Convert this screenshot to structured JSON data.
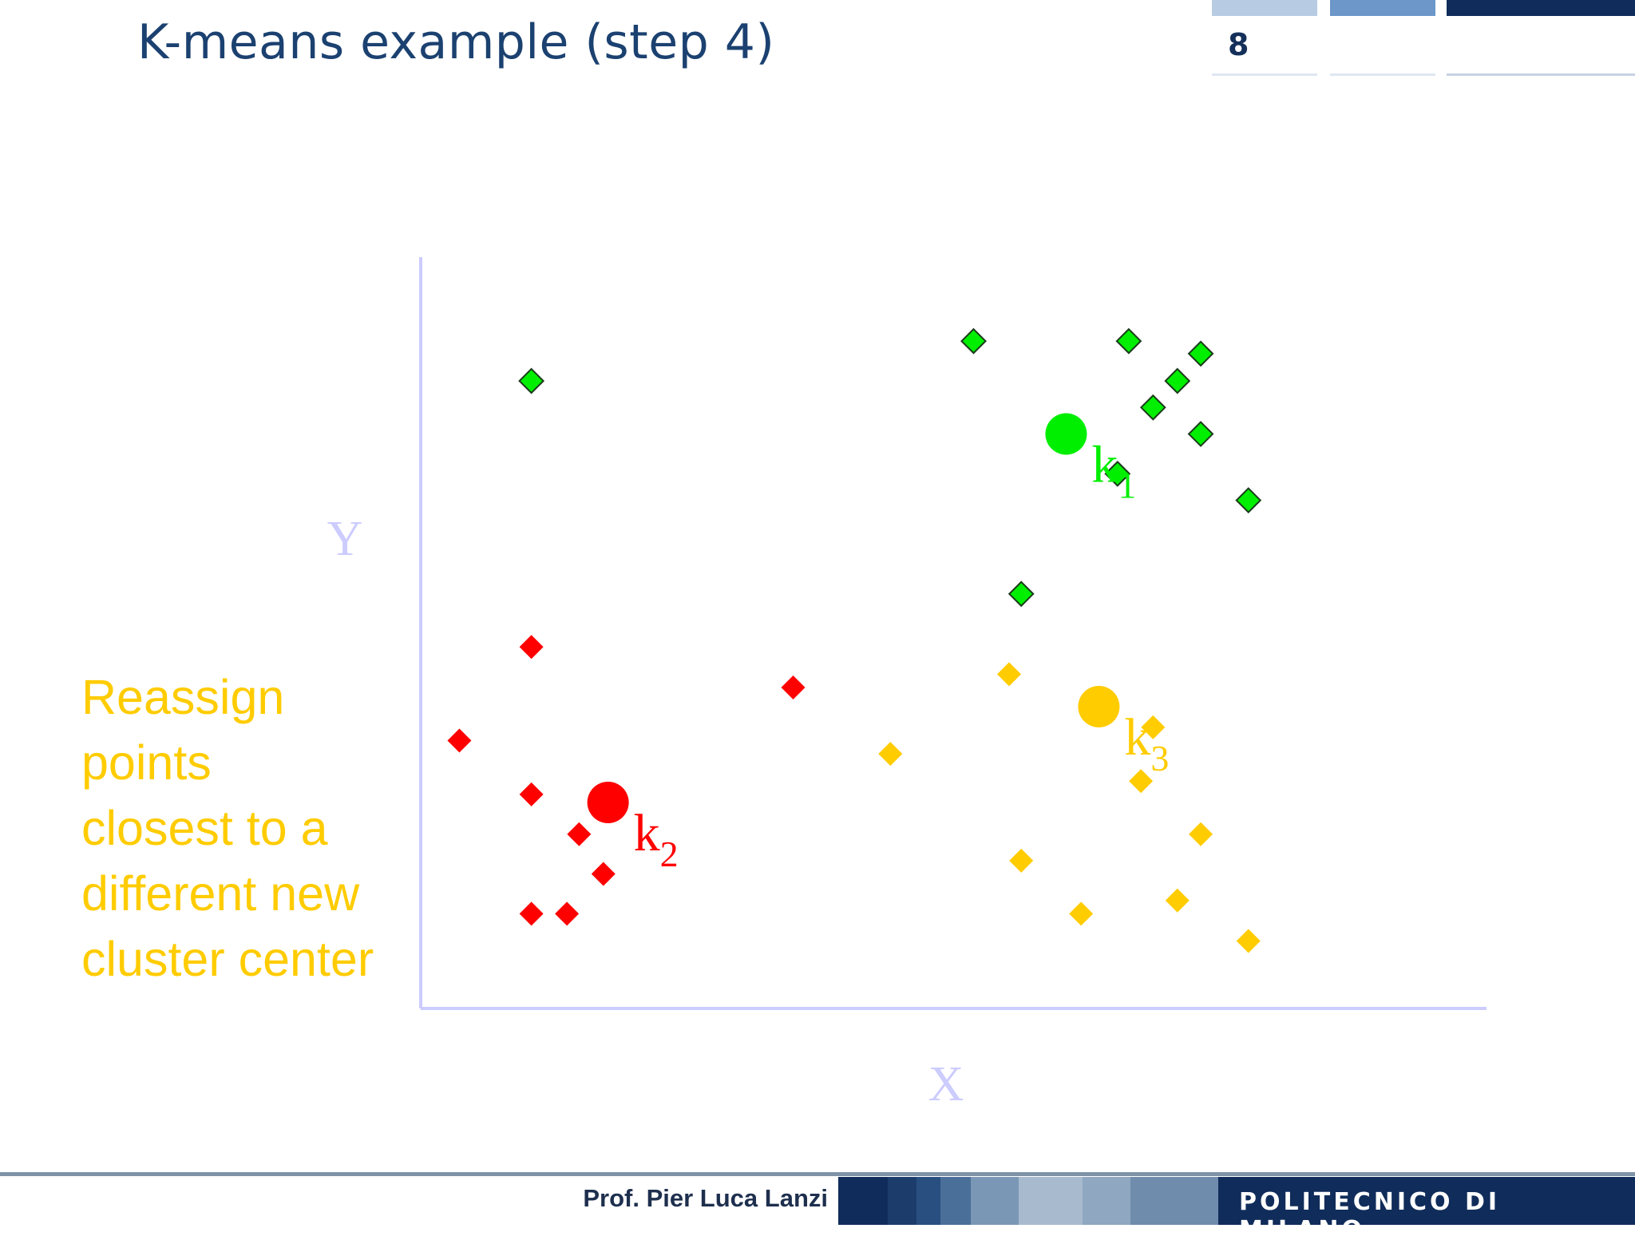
{
  "slide": {
    "title": "K-means example (step 4)",
    "page_number": "8",
    "annotation_lines": [
      "Reassign",
      "points",
      "closest to a",
      "different new",
      "cluster center"
    ],
    "annotation_color": "#ffcc00",
    "footer_author": "Prof. Pier Luca Lanzi",
    "footer_brand": "POLITECNICO DI MILANO",
    "colors": {
      "title": "#1b4170",
      "navy": "#102c5a",
      "axis": "#ccccff"
    },
    "footer_strip_colors": [
      "#102c5a",
      "#1c3d6c",
      "#284f80",
      "#4a6f98",
      "#7a98b6",
      "#a8bace",
      "#8fa7c0",
      "#6f8cac",
      "#102c5a"
    ]
  },
  "chart_data": {
    "type": "scatter",
    "title": "",
    "xlabel": "X",
    "ylabel": "Y",
    "xlim": [
      0,
      100
    ],
    "ylim": [
      0,
      100
    ],
    "grid": false,
    "legend": "none",
    "series": [
      {
        "cluster": "k1",
        "color": "#00ee00",
        "marker": "diamond",
        "outlined": true,
        "points": [
          [
            10.3,
            83.2
          ],
          [
            57.6,
            88.6
          ],
          [
            74.2,
            88.6
          ],
          [
            81.9,
            86.9
          ],
          [
            79.4,
            83.2
          ],
          [
            76.8,
            79.6
          ],
          [
            81.9,
            76.0
          ],
          [
            73.0,
            70.6
          ],
          [
            87.0,
            67.0
          ],
          [
            62.7,
            54.3
          ]
        ]
      },
      {
        "cluster": "k2",
        "color": "#ff0000",
        "marker": "diamond",
        "outlined": false,
        "points": [
          [
            10.3,
            47.1
          ],
          [
            38.3,
            41.6
          ],
          [
            2.6,
            34.4
          ],
          [
            10.3,
            27.1
          ],
          [
            15.4,
            21.7
          ],
          [
            18.0,
            16.3
          ],
          [
            10.3,
            10.9
          ],
          [
            14.1,
            10.9
          ]
        ]
      },
      {
        "cluster": "k3",
        "color": "#ffcc00",
        "marker": "diamond",
        "outlined": false,
        "points": [
          [
            61.4,
            43.4
          ],
          [
            48.7,
            32.6
          ],
          [
            76.8,
            36.2
          ],
          [
            75.5,
            28.9
          ],
          [
            81.9,
            21.7
          ],
          [
            62.7,
            18.1
          ],
          [
            69.1,
            10.9
          ],
          [
            79.4,
            12.7
          ],
          [
            87.0,
            7.2
          ]
        ]
      }
    ],
    "centroids": [
      {
        "label": "k",
        "subscript": "1",
        "x": 67.5,
        "y": 76.0,
        "color": "#00ee00"
      },
      {
        "label": "k",
        "subscript": "2",
        "x": 18.5,
        "y": 26.0,
        "color": "#ff0000"
      },
      {
        "label": "k",
        "subscript": "3",
        "x": 71.0,
        "y": 39.0,
        "color": "#ffcc00"
      }
    ]
  }
}
